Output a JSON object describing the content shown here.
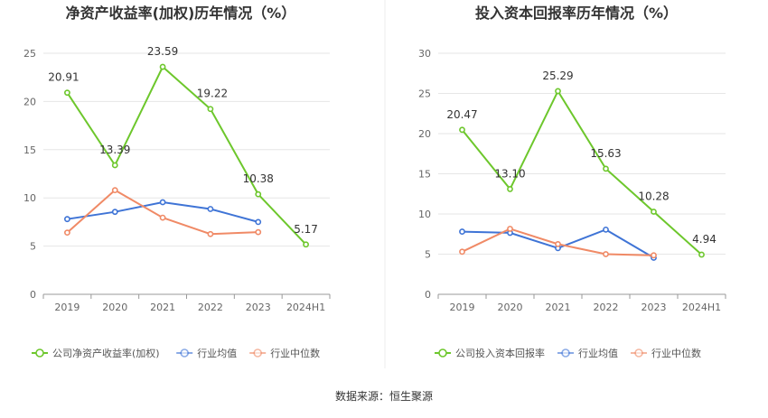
{
  "source_label": "数据来源：恒生聚源",
  "colors": {
    "company": "#6dc72c",
    "average": "#3f74d6",
    "median": "#f08a66",
    "grid": "#e6e6e6",
    "axis": "#999999",
    "tick": "#666666",
    "title": "#333333"
  },
  "chart_data": [
    {
      "type": "line",
      "title": "净资产收益率(加权)历年情况（%）",
      "categories": [
        "2019",
        "2020",
        "2021",
        "2022",
        "2023",
        "2024H1"
      ],
      "ylim": [
        0,
        25
      ],
      "yticks": [
        0,
        5,
        10,
        15,
        20,
        25
      ],
      "grid": true,
      "legend_position": "bottom",
      "series": [
        {
          "name": "公司净资产收益率(加权)",
          "color": "#6dc72c",
          "values": [
            20.91,
            13.39,
            23.59,
            19.22,
            10.38,
            5.17
          ],
          "labels": [
            "20.91",
            "13.39",
            "23.59",
            "19.22",
            "10.38",
            "5.17"
          ]
        },
        {
          "name": "行业均值",
          "color": "#3f74d6",
          "values": [
            7.8,
            8.55,
            9.55,
            8.85,
            7.5,
            null
          ]
        },
        {
          "name": "行业中位数",
          "color": "#f08a66",
          "values": [
            6.4,
            10.8,
            7.95,
            6.25,
            6.45,
            null
          ]
        }
      ]
    },
    {
      "type": "line",
      "title": "投入资本回报率历年情况（%）",
      "categories": [
        "2019",
        "2020",
        "2021",
        "2022",
        "2023",
        "2024H1"
      ],
      "ylim": [
        0,
        30
      ],
      "yticks": [
        0,
        5,
        10,
        15,
        20,
        25,
        30
      ],
      "grid": true,
      "legend_position": "bottom",
      "series": [
        {
          "name": "公司投入资本回报率",
          "color": "#6dc72c",
          "values": [
            20.47,
            13.1,
            25.29,
            15.63,
            10.28,
            4.94
          ],
          "labels": [
            "20.47",
            "13.10",
            "25.29",
            "15.63",
            "10.28",
            "4.94"
          ]
        },
        {
          "name": "行业均值",
          "color": "#3f74d6",
          "values": [
            7.8,
            7.65,
            5.75,
            8.05,
            4.55,
            null
          ]
        },
        {
          "name": "行业中位数",
          "color": "#f08a66",
          "values": [
            5.3,
            8.15,
            6.25,
            5.0,
            4.85,
            null
          ]
        }
      ]
    }
  ]
}
